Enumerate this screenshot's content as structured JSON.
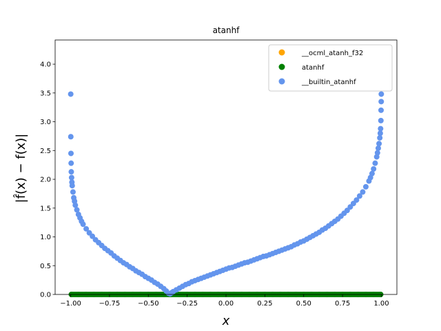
{
  "chart_data": {
    "type": "scatter",
    "title": "atanhf",
    "xlabel": "x",
    "ylabel": "|f̂(x) − f(x)|",
    "xlim": [
      -1.1,
      1.1
    ],
    "ylim": [
      0,
      4.42
    ],
    "xticks": [
      -1.0,
      -0.75,
      -0.5,
      -0.25,
      0.0,
      0.25,
      0.5,
      0.75,
      1.0
    ],
    "xtick_labels": [
      "−1.00",
      "−0.75",
      "−0.50",
      "−0.25",
      "0.00",
      "0.25",
      "0.50",
      "0.75",
      "1.00"
    ],
    "yticks": [
      0.0,
      0.5,
      1.0,
      1.5,
      2.0,
      2.5,
      3.0,
      3.5,
      4.0
    ],
    "ytick_labels": [
      "0.0",
      "0.5",
      "1.0",
      "1.5",
      "2.0",
      "2.5",
      "3.0",
      "3.5",
      "4.0"
    ],
    "legend_position": "top-right",
    "series": [
      {
        "name": "__ocml_atanh_f32",
        "color": "#ffa500",
        "points": []
      },
      {
        "name": "atanhf",
        "color": "#008000",
        "points": [
          [
            -0.995,
            0
          ],
          [
            -0.95,
            0
          ],
          [
            -0.9,
            0
          ],
          [
            -0.85,
            0
          ],
          [
            -0.8,
            0
          ],
          [
            -0.75,
            0
          ],
          [
            -0.7,
            0
          ],
          [
            -0.65,
            0
          ],
          [
            -0.6,
            0
          ],
          [
            -0.55,
            0
          ],
          [
            -0.5,
            0
          ],
          [
            -0.45,
            0
          ],
          [
            -0.4,
            0
          ],
          [
            -0.35,
            0
          ],
          [
            -0.3,
            0
          ],
          [
            -0.25,
            0
          ],
          [
            -0.2,
            0
          ],
          [
            -0.15,
            0
          ],
          [
            -0.1,
            0
          ],
          [
            -0.05,
            0
          ],
          [
            0.0,
            0
          ],
          [
            0.05,
            0
          ],
          [
            0.1,
            0
          ],
          [
            0.15,
            0
          ],
          [
            0.2,
            0
          ],
          [
            0.25,
            0
          ],
          [
            0.3,
            0
          ],
          [
            0.35,
            0
          ],
          [
            0.4,
            0
          ],
          [
            0.45,
            0
          ],
          [
            0.5,
            0
          ],
          [
            0.55,
            0
          ],
          [
            0.6,
            0
          ],
          [
            0.65,
            0
          ],
          [
            0.7,
            0
          ],
          [
            0.75,
            0
          ],
          [
            0.8,
            0
          ],
          [
            0.85,
            0
          ],
          [
            0.9,
            0
          ],
          [
            0.95,
            0
          ],
          [
            0.995,
            0
          ]
        ]
      },
      {
        "name": "__builtin_atanhf",
        "color": "#6495ed",
        "points": [
          [
            -0.9995,
            3.48
          ],
          [
            -0.999,
            2.74
          ],
          [
            -0.998,
            2.45
          ],
          [
            -0.997,
            2.28
          ],
          [
            -0.996,
            2.13
          ],
          [
            -0.994,
            2.03
          ],
          [
            -0.992,
            1.95
          ],
          [
            -0.99,
            1.89
          ],
          [
            -0.985,
            1.78
          ],
          [
            -0.98,
            1.68
          ],
          [
            -0.975,
            1.62
          ],
          [
            -0.97,
            1.55
          ],
          [
            -0.96,
            1.47
          ],
          [
            -0.95,
            1.39
          ],
          [
            -0.94,
            1.33
          ],
          [
            -0.93,
            1.27
          ],
          [
            -0.92,
            1.22
          ],
          [
            -0.9,
            1.14
          ],
          [
            -0.88,
            1.07
          ],
          [
            -0.86,
            1.01
          ],
          [
            -0.84,
            0.95
          ],
          [
            -0.82,
            0.9
          ],
          [
            -0.8,
            0.85
          ],
          [
            -0.78,
            0.8
          ],
          [
            -0.76,
            0.76
          ],
          [
            -0.74,
            0.72
          ],
          [
            -0.72,
            0.67
          ],
          [
            -0.7,
            0.63
          ],
          [
            -0.68,
            0.59
          ],
          [
            -0.66,
            0.55
          ],
          [
            -0.64,
            0.52
          ],
          [
            -0.62,
            0.48
          ],
          [
            -0.6,
            0.45
          ],
          [
            -0.58,
            0.41
          ],
          [
            -0.56,
            0.38
          ],
          [
            -0.54,
            0.35
          ],
          [
            -0.52,
            0.31
          ],
          [
            -0.5,
            0.28
          ],
          [
            -0.48,
            0.25
          ],
          [
            -0.46,
            0.21
          ],
          [
            -0.44,
            0.18
          ],
          [
            -0.42,
            0.14
          ],
          [
            -0.4,
            0.1
          ],
          [
            -0.385,
            0.06
          ],
          [
            -0.37,
            0.02
          ],
          [
            -0.36,
            0.01
          ],
          [
            -0.35,
            0.03
          ],
          [
            -0.34,
            0.05
          ],
          [
            -0.32,
            0.08
          ],
          [
            -0.3,
            0.11
          ],
          [
            -0.28,
            0.14
          ],
          [
            -0.26,
            0.17
          ],
          [
            -0.24,
            0.19
          ],
          [
            -0.22,
            0.22
          ],
          [
            -0.2,
            0.24
          ],
          [
            -0.18,
            0.26
          ],
          [
            -0.16,
            0.28
          ],
          [
            -0.14,
            0.3
          ],
          [
            -0.12,
            0.32
          ],
          [
            -0.1,
            0.34
          ],
          [
            -0.08,
            0.36
          ],
          [
            -0.06,
            0.38
          ],
          [
            -0.04,
            0.4
          ],
          [
            -0.02,
            0.42
          ],
          [
            0.0,
            0.44
          ],
          [
            0.02,
            0.46
          ],
          [
            0.04,
            0.47
          ],
          [
            0.06,
            0.49
          ],
          [
            0.08,
            0.51
          ],
          [
            0.1,
            0.53
          ],
          [
            0.12,
            0.55
          ],
          [
            0.14,
            0.56
          ],
          [
            0.16,
            0.58
          ],
          [
            0.18,
            0.6
          ],
          [
            0.2,
            0.62
          ],
          [
            0.22,
            0.64
          ],
          [
            0.24,
            0.66
          ],
          [
            0.26,
            0.67
          ],
          [
            0.28,
            0.69
          ],
          [
            0.3,
            0.71
          ],
          [
            0.32,
            0.73
          ],
          [
            0.34,
            0.75
          ],
          [
            0.36,
            0.77
          ],
          [
            0.38,
            0.79
          ],
          [
            0.4,
            0.81
          ],
          [
            0.42,
            0.83
          ],
          [
            0.44,
            0.86
          ],
          [
            0.46,
            0.88
          ],
          [
            0.48,
            0.91
          ],
          [
            0.5,
            0.93
          ],
          [
            0.52,
            0.96
          ],
          [
            0.54,
            0.99
          ],
          [
            0.56,
            1.02
          ],
          [
            0.58,
            1.05
          ],
          [
            0.6,
            1.08
          ],
          [
            0.62,
            1.12
          ],
          [
            0.64,
            1.15
          ],
          [
            0.66,
            1.19
          ],
          [
            0.68,
            1.23
          ],
          [
            0.7,
            1.27
          ],
          [
            0.72,
            1.31
          ],
          [
            0.74,
            1.36
          ],
          [
            0.76,
            1.41
          ],
          [
            0.78,
            1.46
          ],
          [
            0.8,
            1.52
          ],
          [
            0.82,
            1.58
          ],
          [
            0.84,
            1.64
          ],
          [
            0.86,
            1.71
          ],
          [
            0.88,
            1.78
          ],
          [
            0.9,
            1.87
          ],
          [
            0.92,
            1.97
          ],
          [
            0.93,
            2.03
          ],
          [
            0.94,
            2.1
          ],
          [
            0.95,
            2.18
          ],
          [
            0.96,
            2.28
          ],
          [
            0.97,
            2.39
          ],
          [
            0.975,
            2.46
          ],
          [
            0.98,
            2.54
          ],
          [
            0.985,
            2.62
          ],
          [
            0.99,
            2.72
          ],
          [
            0.993,
            2.8
          ],
          [
            0.995,
            2.88
          ],
          [
            0.997,
            3.02
          ],
          [
            0.998,
            3.2
          ],
          [
            0.999,
            3.35
          ],
          [
            0.9995,
            3.48
          ]
        ]
      }
    ]
  }
}
